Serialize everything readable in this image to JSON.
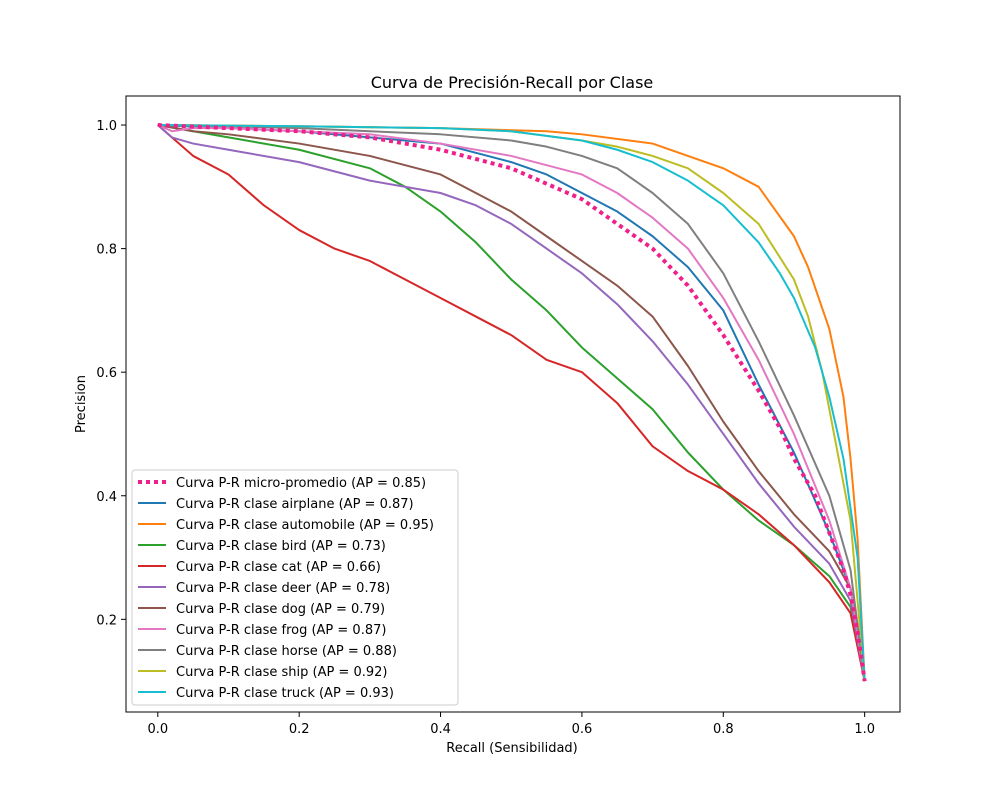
{
  "chart_data": {
    "type": "line",
    "title": "Curva de Precisión-Recall por Clase",
    "xlabel": "Recall (Sensibilidad)",
    "ylabel": "Precision",
    "xlim": [
      -0.045,
      1.05
    ],
    "ylim": [
      0.05,
      1.047
    ],
    "xticks": [
      0.0,
      0.2,
      0.4,
      0.6,
      0.8,
      1.0
    ],
    "xtick_labels": [
      "0.0",
      "0.2",
      "0.4",
      "0.6",
      "0.8",
      "1.0"
    ],
    "yticks": [
      0.2,
      0.4,
      0.6,
      0.8,
      1.0
    ],
    "ytick_labels": [
      "0.2",
      "0.4",
      "0.6",
      "0.8",
      "1.0"
    ],
    "grid": false,
    "legend_position": "lower-left",
    "series": [
      {
        "name": "Curva P-R micro-promedio (AP = 0.85)",
        "color": "#f01f8a",
        "dashed": true,
        "x": [
          0.0,
          0.1,
          0.2,
          0.3,
          0.4,
          0.5,
          0.6,
          0.65,
          0.7,
          0.75,
          0.8,
          0.85,
          0.88,
          0.9,
          0.93,
          0.95,
          0.97,
          0.98,
          0.99,
          1.0
        ],
        "y": [
          1.0,
          0.995,
          0.99,
          0.98,
          0.96,
          0.93,
          0.88,
          0.84,
          0.8,
          0.74,
          0.66,
          0.57,
          0.51,
          0.46,
          0.4,
          0.34,
          0.28,
          0.24,
          0.18,
          0.1
        ]
      },
      {
        "name": "Curva P-R clase airplane (AP = 0.87)",
        "color": "#1f77b4",
        "dashed": false,
        "x": [
          0.0,
          0.1,
          0.2,
          0.3,
          0.4,
          0.5,
          0.55,
          0.6,
          0.65,
          0.7,
          0.75,
          0.8,
          0.85,
          0.9,
          0.95,
          0.98,
          1.0
        ],
        "y": [
          1.0,
          0.995,
          0.99,
          0.98,
          0.97,
          0.94,
          0.92,
          0.89,
          0.86,
          0.82,
          0.77,
          0.7,
          0.58,
          0.47,
          0.34,
          0.25,
          0.1
        ]
      },
      {
        "name": "Curva P-R clase automobile (AP = 0.95)",
        "color": "#ff7f0e",
        "dashed": false,
        "x": [
          0.0,
          0.2,
          0.4,
          0.55,
          0.6,
          0.7,
          0.75,
          0.8,
          0.85,
          0.9,
          0.92,
          0.95,
          0.97,
          0.98,
          0.99,
          1.0
        ],
        "y": [
          1.0,
          0.998,
          0.995,
          0.99,
          0.985,
          0.97,
          0.95,
          0.93,
          0.9,
          0.82,
          0.77,
          0.67,
          0.56,
          0.46,
          0.33,
          0.1
        ]
      },
      {
        "name": "Curva P-R clase bird (AP = 0.73)",
        "color": "#2ca02c",
        "dashed": false,
        "x": [
          0.0,
          0.05,
          0.1,
          0.2,
          0.3,
          0.35,
          0.4,
          0.45,
          0.5,
          0.55,
          0.6,
          0.65,
          0.7,
          0.75,
          0.8,
          0.85,
          0.9,
          0.95,
          0.98,
          1.0
        ],
        "y": [
          1.0,
          0.99,
          0.98,
          0.96,
          0.93,
          0.9,
          0.86,
          0.81,
          0.75,
          0.7,
          0.64,
          0.59,
          0.54,
          0.47,
          0.41,
          0.36,
          0.32,
          0.27,
          0.22,
          0.1
        ]
      },
      {
        "name": "Curva P-R clase cat (AP = 0.66)",
        "color": "#d62728",
        "dashed": false,
        "x": [
          0.0,
          0.02,
          0.05,
          0.1,
          0.15,
          0.2,
          0.25,
          0.3,
          0.35,
          0.4,
          0.45,
          0.5,
          0.55,
          0.6,
          0.65,
          0.7,
          0.75,
          0.8,
          0.85,
          0.9,
          0.95,
          0.98,
          1.0
        ],
        "y": [
          1.0,
          0.98,
          0.95,
          0.92,
          0.87,
          0.83,
          0.8,
          0.78,
          0.75,
          0.72,
          0.69,
          0.66,
          0.62,
          0.6,
          0.55,
          0.48,
          0.44,
          0.41,
          0.37,
          0.32,
          0.26,
          0.21,
          0.1
        ]
      },
      {
        "name": "Curva P-R clase deer (AP = 0.78)",
        "color": "#9467bd",
        "dashed": false,
        "x": [
          0.0,
          0.02,
          0.05,
          0.1,
          0.2,
          0.3,
          0.4,
          0.45,
          0.5,
          0.55,
          0.6,
          0.65,
          0.7,
          0.75,
          0.8,
          0.85,
          0.9,
          0.95,
          0.98,
          1.0
        ],
        "y": [
          1.0,
          0.98,
          0.97,
          0.96,
          0.94,
          0.91,
          0.89,
          0.87,
          0.84,
          0.8,
          0.76,
          0.71,
          0.65,
          0.58,
          0.5,
          0.42,
          0.35,
          0.29,
          0.23,
          0.1
        ]
      },
      {
        "name": "Curva P-R clase dog (AP = 0.79)",
        "color": "#8c564b",
        "dashed": false,
        "x": [
          0.0,
          0.05,
          0.1,
          0.2,
          0.3,
          0.4,
          0.45,
          0.5,
          0.55,
          0.6,
          0.65,
          0.7,
          0.75,
          0.8,
          0.85,
          0.9,
          0.95,
          0.98,
          1.0
        ],
        "y": [
          1.0,
          0.99,
          0.985,
          0.97,
          0.95,
          0.92,
          0.89,
          0.86,
          0.82,
          0.78,
          0.74,
          0.69,
          0.61,
          0.52,
          0.44,
          0.37,
          0.31,
          0.25,
          0.1
        ]
      },
      {
        "name": "Curva P-R clase frog (AP = 0.87)",
        "color": "#e377c2",
        "dashed": false,
        "x": [
          0.0,
          0.02,
          0.05,
          0.1,
          0.2,
          0.3,
          0.4,
          0.5,
          0.6,
          0.65,
          0.7,
          0.75,
          0.8,
          0.85,
          0.9,
          0.95,
          0.98,
          1.0
        ],
        "y": [
          1.0,
          0.99,
          0.995,
          0.995,
          0.99,
          0.985,
          0.97,
          0.95,
          0.92,
          0.89,
          0.85,
          0.8,
          0.72,
          0.62,
          0.5,
          0.36,
          0.25,
          0.1
        ]
      },
      {
        "name": "Curva P-R clase horse (AP = 0.88)",
        "color": "#7f7f7f",
        "dashed": false,
        "x": [
          0.0,
          0.1,
          0.2,
          0.3,
          0.4,
          0.5,
          0.55,
          0.6,
          0.65,
          0.7,
          0.75,
          0.8,
          0.85,
          0.9,
          0.95,
          0.98,
          1.0
        ],
        "y": [
          1.0,
          0.998,
          0.995,
          0.99,
          0.985,
          0.975,
          0.965,
          0.95,
          0.93,
          0.89,
          0.84,
          0.76,
          0.65,
          0.53,
          0.4,
          0.28,
          0.1
        ]
      },
      {
        "name": "Curva P-R clase ship (AP = 0.92)",
        "color": "#bcbd22",
        "dashed": false,
        "x": [
          0.0,
          0.2,
          0.4,
          0.5,
          0.6,
          0.65,
          0.7,
          0.75,
          0.8,
          0.85,
          0.9,
          0.92,
          0.94,
          0.96,
          0.98,
          1.0
        ],
        "y": [
          1.0,
          0.998,
          0.995,
          0.99,
          0.975,
          0.965,
          0.95,
          0.93,
          0.89,
          0.84,
          0.75,
          0.69,
          0.6,
          0.48,
          0.36,
          0.1
        ]
      },
      {
        "name": "Curva P-R clase truck (AP = 0.93)",
        "color": "#17becf",
        "dashed": false,
        "x": [
          0.0,
          0.2,
          0.4,
          0.5,
          0.6,
          0.65,
          0.7,
          0.75,
          0.8,
          0.85,
          0.88,
          0.9,
          0.93,
          0.95,
          0.97,
          0.99,
          1.0
        ],
        "y": [
          1.0,
          0.998,
          0.995,
          0.99,
          0.975,
          0.96,
          0.94,
          0.91,
          0.87,
          0.81,
          0.76,
          0.72,
          0.64,
          0.56,
          0.46,
          0.3,
          0.1
        ]
      }
    ]
  }
}
